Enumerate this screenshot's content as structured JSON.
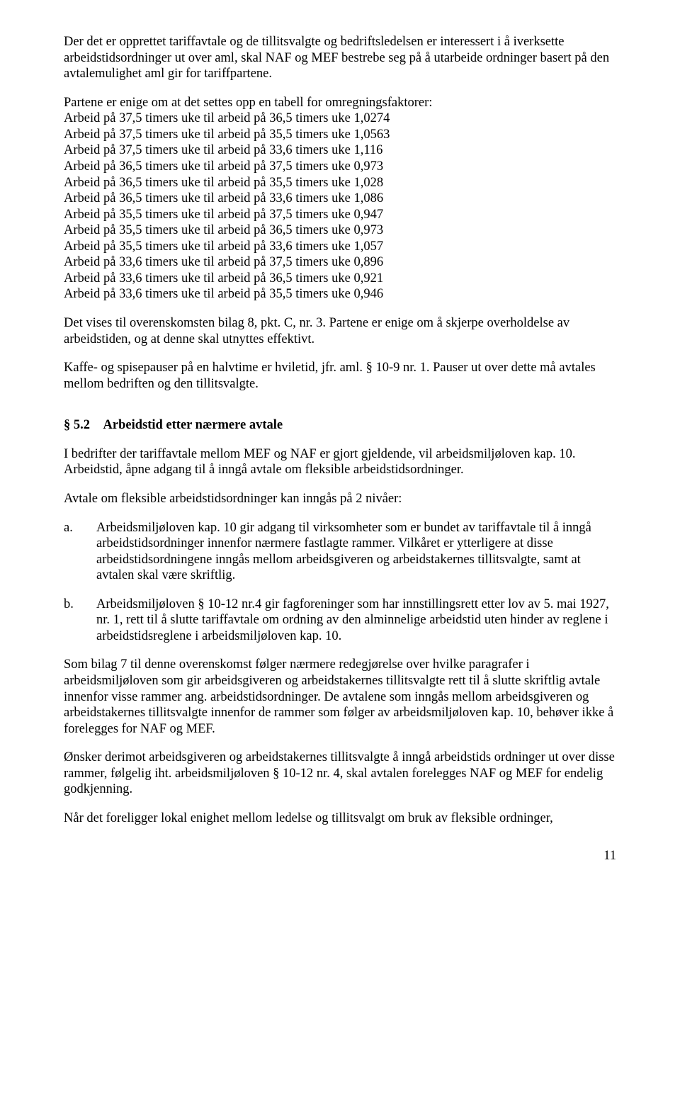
{
  "p1": "Der det er opprettet tariffavtale og de tillitsvalgte og bedriftsledelsen er interessert i å iverksette arbeidstidsordninger ut over aml, skal NAF og MEF bestrebe seg på å utarbeide ordninger basert på den avtalemulighet aml gir for tariffpartene.",
  "p2": "Partene er enige om at det settes opp en tabell for omregningsfaktorer:",
  "conv": [
    "Arbeid på 37,5 timers uke til arbeid på 36,5 timers uke 1,0274",
    "Arbeid på 37,5 timers uke til arbeid på 35,5 timers uke 1,0563",
    "Arbeid på 37,5 timers uke til arbeid på 33,6 timers uke 1,116",
    "Arbeid på 36,5 timers uke til arbeid på 37,5 timers uke 0,973",
    "Arbeid på 36,5 timers uke til arbeid på 35,5 timers uke 1,028",
    "Arbeid på 36,5 timers uke til arbeid på 33,6 timers uke 1,086",
    "Arbeid på 35,5 timers uke til arbeid på 37,5 timers uke 0,947",
    "Arbeid på 35,5 timers uke til arbeid på 36,5 timers uke 0,973",
    "Arbeid på 35,5 timers uke til arbeid på 33,6 timers uke 1,057",
    "Arbeid på 33,6 timers uke til arbeid på 37,5 timers uke 0,896",
    "Arbeid på 33,6 timers uke til arbeid på 36,5 timers uke 0,921",
    "Arbeid på 33,6 timers uke til arbeid på 35,5 timers uke 0,946"
  ],
  "p3": "Det vises til overenskomsten bilag 8, pkt. C, nr. 3. Partene er enige om å skjerpe overholdelse av arbeidstiden, og at denne skal utnyttes effektivt.",
  "p4": "Kaffe- og spisepauser på en halvtime er hviletid, jfr. aml. § 10-9 nr. 1. Pauser ut over dette må avtales mellom bedriften og den tillitsvalgte.",
  "h52": "§ 5.2 Arbeidstid etter nærmere avtale",
  "p5": "I bedrifter der tariffavtale mellom MEF og NAF er gjort gjeldende, vil arbeidsmiljøloven kap. 10. Arbeidstid, åpne adgang til å inngå avtale om fleksible arbeidstidsordninger.",
  "p6": "Avtale om fleksible arbeidstidsordninger kan inngås på 2 nivåer:",
  "a_letter": "a.",
  "a_body": "Arbeidsmiljøloven kap. 10 gir adgang til virksomheter som er bundet av tariffavtale til å inngå arbeidstidsordninger innenfor nærmere fastlagte rammer. Vilkåret er ytterligere at disse arbeidstidsordningene inngås mellom arbeidsgiveren og arbeidstakernes tillitsvalgte, samt at avtalen skal være skriftlig.",
  "b_letter": "b.",
  "b_body": "Arbeidsmiljøloven § 10-12 nr.4 gir fagforeninger som har innstillingsrett etter lov av 5. mai 1927, nr. 1, rett til å slutte tariffavtale om ordning av den alminnelige arbeidstid uten hinder av reglene i arbeidstidsreglene i arbeidsmiljøloven kap. 10.",
  "p7": "Som bilag 7 til denne overenskomst følger nærmere redegjørelse over hvilke paragrafer i arbeidsmiljøloven som gir arbeidsgiveren og arbeidstakernes tillitsvalgte rett til å slutte skriftlig avtale innenfor visse rammer ang. arbeidstidsordninger. De avtalene som inngås mellom arbeidsgiveren og arbeidstakernes tillitsvalgte innenfor de rammer som følger av arbeidsmiljøloven kap. 10, behøver ikke å forelegges for NAF og MEF.",
  "p8": "Ønsker derimot arbeidsgiveren og arbeidstakernes tillitsvalgte å inngå arbeidstids ordninger ut over disse rammer, følgelig iht. arbeidsmiljøloven § 10-12 nr. 4, skal avtalen forelegges NAF og MEF for endelig godkjenning.",
  "p9": "Når det foreligger lokal enighet mellom ledelse og tillitsvalgt om bruk av fleksible ordninger,",
  "page": "11"
}
